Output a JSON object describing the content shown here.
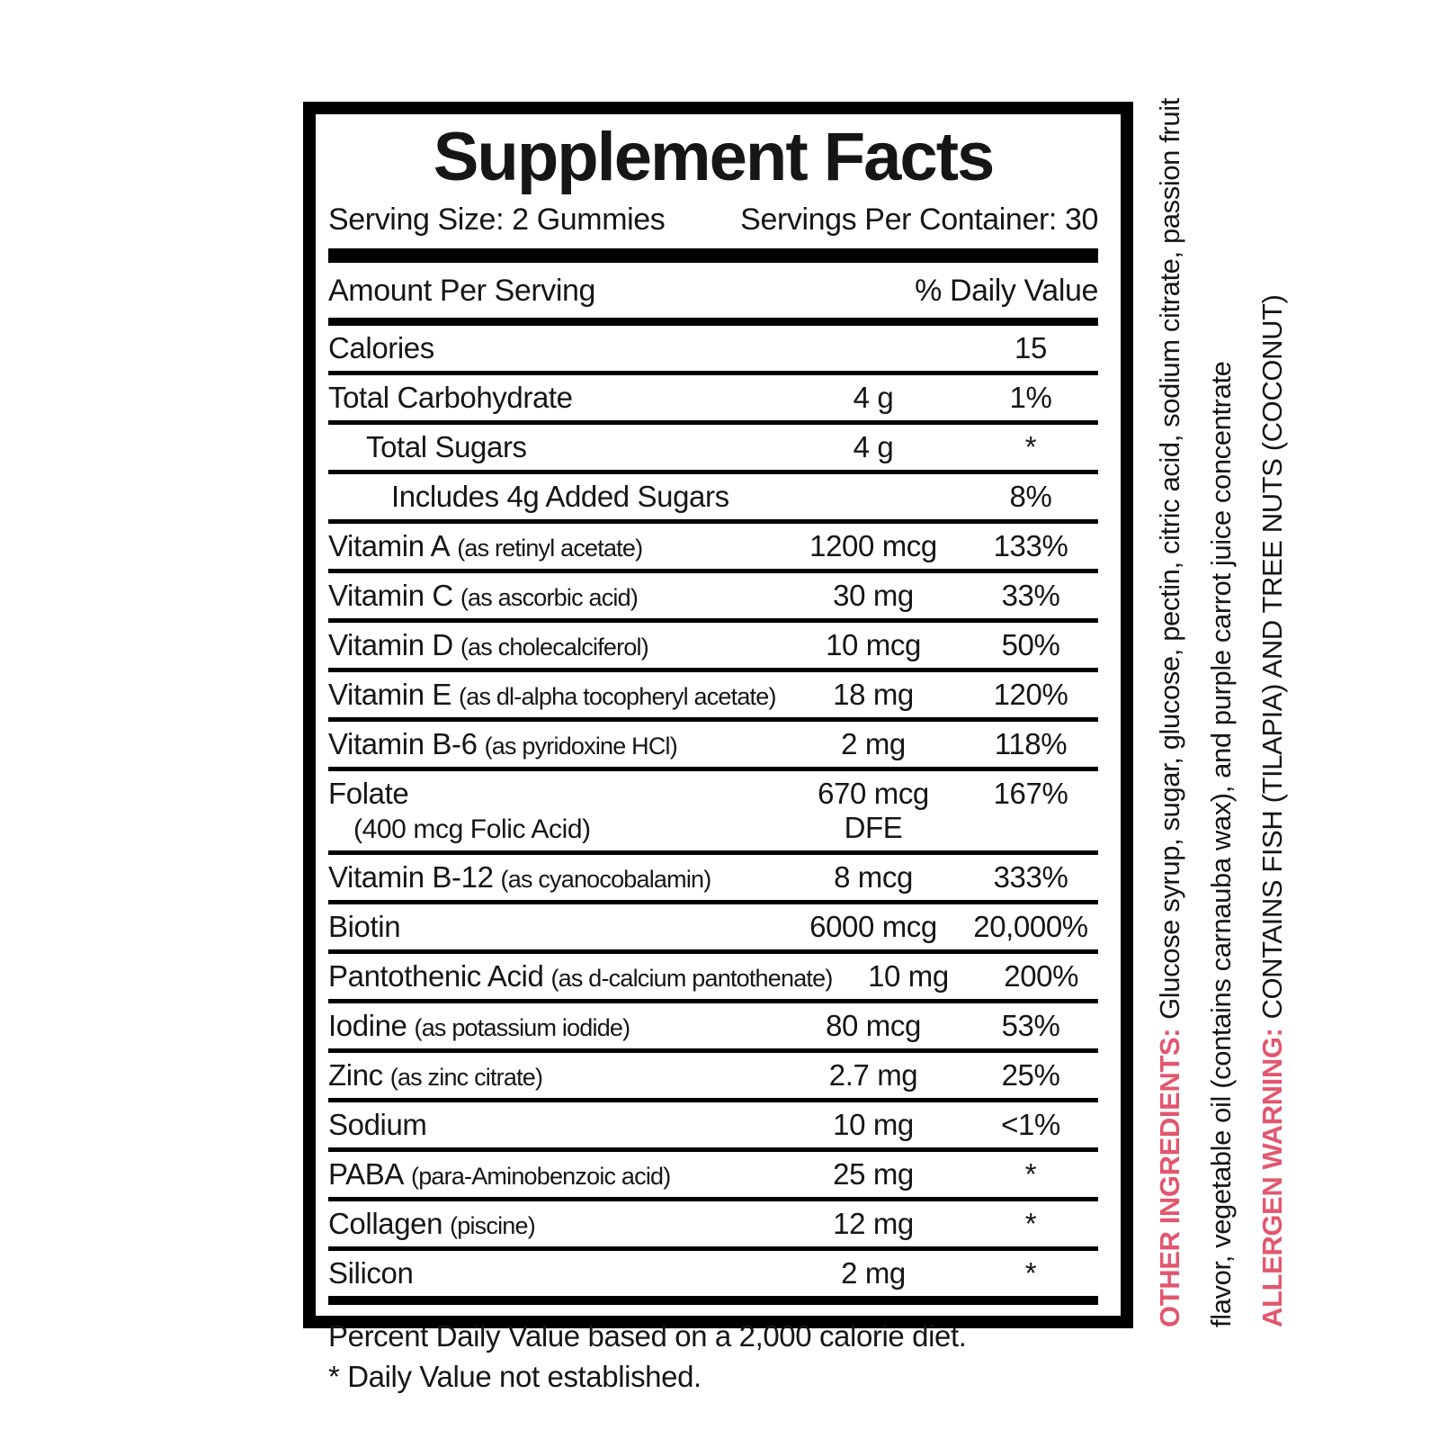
{
  "label": {
    "title": "Supplement Facts",
    "serving_size": "Serving Size: 2 Gummies",
    "servings_per_container": "Servings Per Container: 30",
    "column_headers": {
      "amount": "Amount Per Serving",
      "daily_value": "% Daily Value"
    },
    "rows": [
      {
        "name": "Calories",
        "amount": "",
        "dv": "15",
        "indent": 0
      },
      {
        "name": "Total Carbohydrate",
        "amount": "4 g",
        "dv": "1%",
        "indent": 0
      },
      {
        "name": "Total Sugars",
        "amount": "4 g",
        "dv": "*",
        "indent": 1
      },
      {
        "name": "Includes 4g Added Sugars",
        "amount": "",
        "dv": "8%",
        "indent": 2
      },
      {
        "name": "Vitamin A",
        "detail": "(as retinyl acetate)",
        "amount": "1200 mcg",
        "dv": "133%",
        "indent": 0
      },
      {
        "name": "Vitamin C",
        "detail": "(as ascorbic acid)",
        "amount": "30 mg",
        "dv": "33%",
        "indent": 0
      },
      {
        "name": "Vitamin D",
        "detail": "(as cholecalciferol)",
        "amount": "10 mcg",
        "dv": "50%",
        "indent": 0
      },
      {
        "name": "Vitamin E",
        "detail": "(as dl-alpha tocopheryl acetate)",
        "amount": "18 mg",
        "dv": "120%",
        "indent": 0
      },
      {
        "name": "Vitamin B-6",
        "detail": "(as pyridoxine HCl)",
        "amount": "2 mg",
        "dv": "118%",
        "indent": 0
      },
      {
        "name": "Folate",
        "name2": "(400 mcg Folic Acid)",
        "amount": "670 mcg",
        "amount2": "DFE",
        "dv": "167%",
        "indent": 0
      },
      {
        "name": "Vitamin B-12",
        "detail": "(as cyanocobalamin)",
        "amount": "8 mcg",
        "dv": "333%",
        "indent": 0
      },
      {
        "name": "Biotin",
        "amount": "6000 mcg",
        "dv": "20,000%",
        "indent": 0
      },
      {
        "name": "Pantothenic Acid",
        "detail": "(as d-calcium pantothenate)",
        "amount": "10 mg",
        "dv": "200%",
        "indent": 0
      },
      {
        "name": "Iodine",
        "detail": "(as potassium iodide)",
        "amount": "80 mcg",
        "dv": "53%",
        "indent": 0
      },
      {
        "name": "Zinc",
        "detail": "(as zinc citrate)",
        "amount": "2.7 mg",
        "dv": "25%",
        "indent": 0
      },
      {
        "name": "Sodium",
        "amount": "10 mg",
        "dv": "<1%",
        "indent": 0
      },
      {
        "name": "PABA",
        "detail": "(para-Aminobenzoic acid)",
        "amount": "25 mg",
        "dv": "*",
        "indent": 0
      },
      {
        "name": "Collagen",
        "detail": "(piscine)",
        "amount": "12 mg",
        "dv": "*",
        "indent": 0
      },
      {
        "name": "Silicon",
        "amount": "2 mg",
        "dv": "*",
        "indent": 0
      }
    ],
    "footnotes": [
      "Percent Daily Value based on a 2,000 calorie diet.",
      "* Daily Value not established."
    ]
  },
  "side_text": {
    "other_ingredients_label": "OTHER INGREDIENTS:",
    "other_ingredients_line1": "Glucose syrup, sugar, glucose, pectin, citric acid, sodium citrate, passion fruit",
    "other_ingredients_line2": "flavor, vegetable oil (contains carnauba wax), and purple carrot juice concentrate",
    "allergen_label": "ALLERGEN WARNING:",
    "allergen_text": "CONTAINS FISH (TILAPIA) AND TREE NUTS (COCONUT)"
  },
  "colors": {
    "accent_pink": "#e2576e",
    "text_black": "#161616",
    "border_black": "#000000"
  }
}
